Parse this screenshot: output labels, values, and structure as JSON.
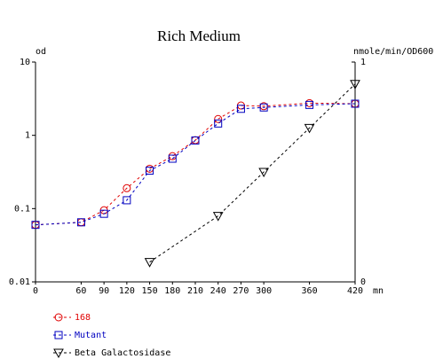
{
  "chart_data": {
    "type": "line",
    "title": "Rich Medium",
    "y_label": "od",
    "y2_label": "nmole/min/OD600",
    "x_label": "mn",
    "x": [
      0,
      60,
      90,
      120,
      150,
      180,
      210,
      240,
      270,
      300,
      360,
      420
    ],
    "xlim": [
      0,
      420
    ],
    "xticks": [
      0,
      60,
      90,
      120,
      150,
      180,
      210,
      240,
      270,
      300,
      360,
      420
    ],
    "ylim": [
      0.01,
      10
    ],
    "yticks": [
      0.01,
      0.1,
      1,
      10
    ],
    "ylog": true,
    "y2lim": [
      0,
      1
    ],
    "y2ticks": [
      0,
      1
    ],
    "legend": "bottom",
    "series": [
      {
        "name": "168",
        "color": "#e00000",
        "marker": "circle",
        "x": [
          0,
          60,
          90,
          120,
          150,
          180,
          210,
          240,
          270,
          300,
          360,
          420
        ],
        "values": [
          0.06,
          0.065,
          0.095,
          0.19,
          0.35,
          0.52,
          0.86,
          1.67,
          2.55,
          2.5,
          2.75,
          2.7
        ]
      },
      {
        "name": "Mutant",
        "color": "#0000c0",
        "marker": "square",
        "x": [
          0,
          60,
          90,
          120,
          150,
          180,
          210,
          240,
          270,
          300,
          360,
          420
        ],
        "values": [
          0.06,
          0.065,
          0.085,
          0.13,
          0.33,
          0.48,
          0.85,
          1.45,
          2.3,
          2.4,
          2.6,
          2.7
        ]
      },
      {
        "name": "Beta Galactosidase",
        "color": "#000000",
        "marker": "triangle-down",
        "axis": "y2",
        "x": [
          150,
          240,
          300,
          360,
          420
        ],
        "values": [
          0.09,
          0.3,
          0.5,
          0.7,
          0.9
        ]
      }
    ]
  }
}
